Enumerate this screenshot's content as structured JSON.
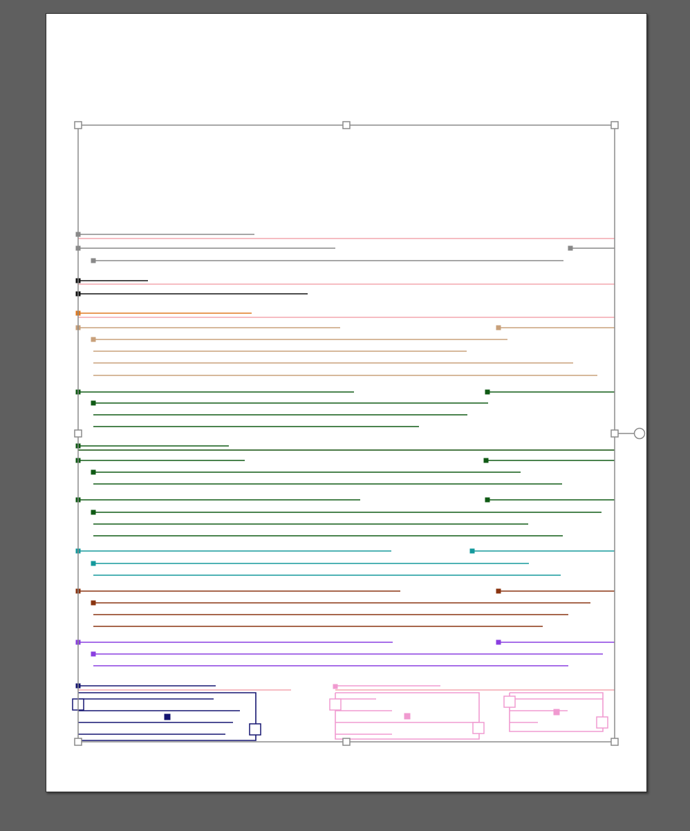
{
  "canvas": {
    "background": "#5f5f5f",
    "artboard_color": "#ffffff",
    "selection_color": "#8a8a8a"
  },
  "selection": {
    "handles": [
      "top-left",
      "top-center",
      "top-right",
      "middle-left",
      "middle-right",
      "bottom-left",
      "bottom-center",
      "bottom-right"
    ],
    "rotate_handle": "rotate-handle-icon"
  },
  "colors": {
    "guide_pink": "#f4a6ae",
    "gray": "#888888",
    "black": "#111111",
    "orange": "#e07a20",
    "tan": "#c8a07a",
    "dark_green": "#0f5a14",
    "teal": "#14999c",
    "brown": "#8a3410",
    "purple": "#8a3ee0",
    "navy": "#141470",
    "pink": "#f09ad0"
  },
  "object_groups": [
    {
      "id": "gray-group",
      "color": "#888888",
      "lines": 3
    },
    {
      "id": "black-group",
      "color": "#111111",
      "lines": 2
    },
    {
      "id": "orange-group",
      "color": "#e07a20",
      "lines": 1
    },
    {
      "id": "tan-group",
      "color": "#c8a07a",
      "lines": 5
    },
    {
      "id": "green-group-1",
      "color": "#0f5a14",
      "lines": 4
    },
    {
      "id": "green-group-2",
      "color": "#0f5a14",
      "lines": 4
    },
    {
      "id": "green-group-3",
      "color": "#0f5a14",
      "lines": 4
    },
    {
      "id": "teal-group",
      "color": "#14999c",
      "lines": 3
    },
    {
      "id": "brown-group",
      "color": "#8a3410",
      "lines": 4
    },
    {
      "id": "purple-group",
      "color": "#8a3ee0",
      "lines": 3
    },
    {
      "id": "navy-box",
      "color": "#141470",
      "lines": 5
    },
    {
      "id": "pink-box",
      "color": "#f09ad0",
      "lines": 4
    },
    {
      "id": "pink-box-small",
      "color": "#f09ad0",
      "lines": 3
    }
  ]
}
